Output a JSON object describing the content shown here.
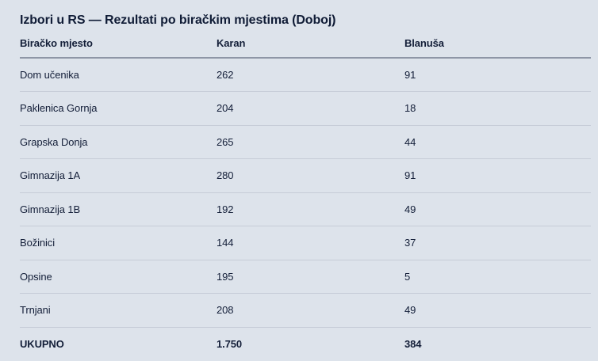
{
  "colors": {
    "background": "#dde3eb",
    "text": "#131e38",
    "header_divider": "#8e96a6",
    "row_divider": "#c6ccd7"
  },
  "chart_data": {
    "type": "table",
    "title": "Izbori u RS — Rezultati po biračkim mjestima (Doboj)",
    "columns": [
      "Biračko mjesto",
      "Karan",
      "Blanuša"
    ],
    "rows": [
      [
        "Dom učenika",
        "262",
        "91"
      ],
      [
        "Paklenica Gornja",
        "204",
        "18"
      ],
      [
        "Grapska Donja",
        "265",
        "44"
      ],
      [
        "Gimnazija 1A",
        "280",
        "91"
      ],
      [
        "Gimnazija 1B",
        "192",
        "49"
      ],
      [
        "Božinici",
        "144",
        "37"
      ],
      [
        "Opsine",
        "195",
        "5"
      ],
      [
        "Trnjani",
        "208",
        "49"
      ]
    ],
    "total_row": [
      "UKUPNO",
      "1.750",
      "384"
    ],
    "totals_numeric": {
      "karan": 1750,
      "blanusa": 384
    }
  }
}
